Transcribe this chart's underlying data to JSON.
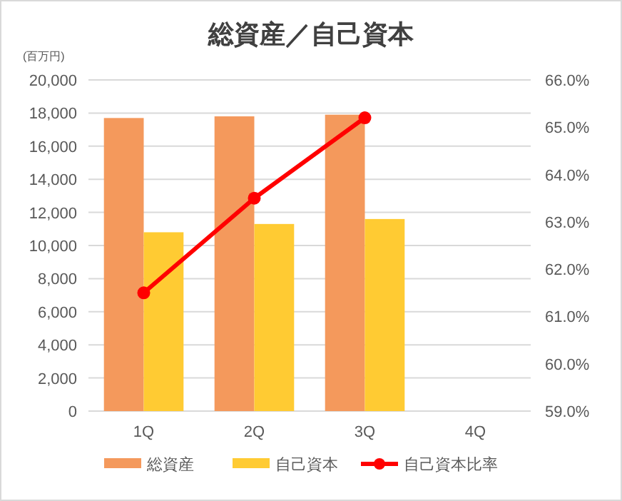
{
  "chart_data": {
    "type": "bar",
    "title": "総資産／自己資本",
    "annotations": [
      "(百万円)"
    ],
    "categories": [
      "1Q",
      "2Q",
      "3Q",
      "4Q"
    ],
    "series": [
      {
        "name": "総資産",
        "color": "#f4995c",
        "values": [
          17700,
          17800,
          17900,
          null
        ]
      },
      {
        "name": "自己資本",
        "color": "#ffcb33",
        "values": [
          10800,
          11300,
          11600,
          null
        ]
      },
      {
        "name": "自己資本比率",
        "type": "line",
        "axis": "y2",
        "color": "#ff0000",
        "values": [
          61.5,
          63.5,
          65.2,
          null
        ]
      }
    ],
    "ylim": [
      0,
      20000
    ],
    "yticks": [
      {
        "value": 0,
        "label": "0"
      },
      {
        "value": 2000,
        "label": "2,000"
      },
      {
        "value": 4000,
        "label": "4,000"
      },
      {
        "value": 6000,
        "label": "6,000"
      },
      {
        "value": 8000,
        "label": "8,000"
      },
      {
        "value": 10000,
        "label": "10,000"
      },
      {
        "value": 12000,
        "label": "12,000"
      },
      {
        "value": 14000,
        "label": "14,000"
      },
      {
        "value": 16000,
        "label": "16,000"
      },
      {
        "value": 18000,
        "label": "18,000"
      },
      {
        "value": 20000,
        "label": "20,000"
      }
    ],
    "y2lim": [
      59,
      66
    ],
    "y2ticks": [
      {
        "value": 59,
        "label": "59.0%"
      },
      {
        "value": 60,
        "label": "60.0%"
      },
      {
        "value": 61,
        "label": "61.0%"
      },
      {
        "value": 62,
        "label": "62.0%"
      },
      {
        "value": 63,
        "label": "63.0%"
      },
      {
        "value": 64,
        "label": "64.0%"
      },
      {
        "value": 65,
        "label": "65.0%"
      },
      {
        "value": 66,
        "label": "66.0%"
      }
    ],
    "grid": "y",
    "legend": "bottom",
    "marker": "circle"
  }
}
